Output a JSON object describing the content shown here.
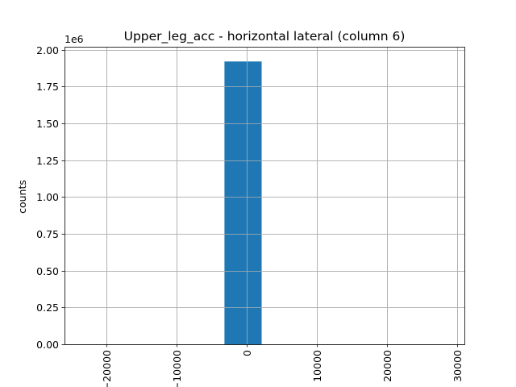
{
  "chart_data": {
    "type": "bar",
    "title": "Upper_leg_acc - horizontal lateral (column 6)",
    "xlabel": "",
    "ylabel": "counts",
    "y_offset_label": "1e6",
    "x_range": [
      -26000,
      31000
    ],
    "y_range": [
      0,
      2.02
    ],
    "x_ticks": [
      -20000,
      -10000,
      0,
      10000,
      20000,
      30000
    ],
    "x_tick_labels": [
      "−20000",
      "−10000",
      "0",
      "10000",
      "20000",
      "30000"
    ],
    "y_ticks": [
      0.0,
      0.25,
      0.5,
      0.75,
      1.0,
      1.25,
      1.5,
      1.75,
      2.0
    ],
    "y_tick_labels": [
      "0.00",
      "0.25",
      "0.50",
      "0.75",
      "1.00",
      "1.25",
      "1.50",
      "1.75",
      "2.00"
    ],
    "bins": [
      {
        "x0": -3200,
        "x1": 2100,
        "value": 1.92
      }
    ],
    "grid": true,
    "bar_color": "#1f77b4",
    "grid_color": "#b0b0b0"
  }
}
